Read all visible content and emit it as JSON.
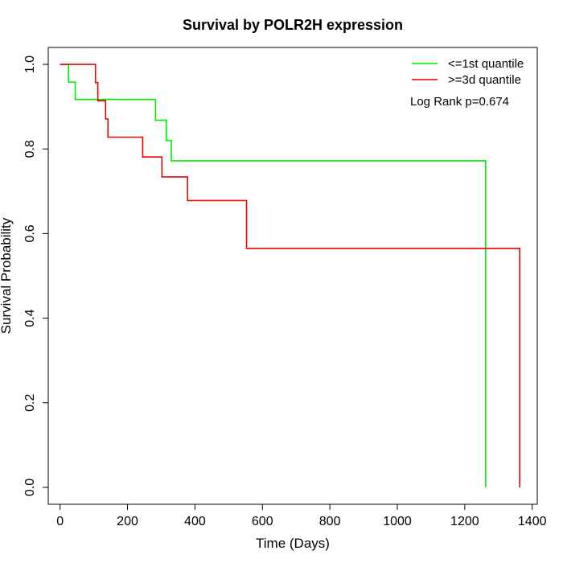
{
  "chart_data": {
    "type": "line",
    "title": "Survival by POLR2H expression",
    "xlabel": "Time (Days)",
    "ylabel": "Survival Probability",
    "xlim": [
      -35,
      1415
    ],
    "ylim": [
      -0.04,
      1.04
    ],
    "xticks": [
      0,
      200,
      400,
      600,
      800,
      1000,
      1200,
      1400
    ],
    "yticks": [
      0.0,
      0.2,
      0.4,
      0.6,
      0.8,
      1.0
    ],
    "ytick_labels": [
      "0.0",
      "0.2",
      "0.4",
      "0.6",
      "0.8",
      "1.0"
    ],
    "grid": false,
    "legend_position": "top-right",
    "annotation": "Log Rank p=0.674",
    "series": [
      {
        "name": "<=1st quantile",
        "color": "#00ee00",
        "step": [
          [
            0,
            1.0
          ],
          [
            25,
            1.0
          ],
          [
            25,
            0.958
          ],
          [
            45,
            0.958
          ],
          [
            45,
            0.917
          ],
          [
            283,
            0.917
          ],
          [
            283,
            0.868
          ],
          [
            315,
            0.868
          ],
          [
            315,
            0.82
          ],
          [
            330,
            0.82
          ],
          [
            330,
            0.772
          ],
          [
            1262,
            0.772
          ],
          [
            1262,
            0.0
          ]
        ]
      },
      {
        "name": ">=3d quantile",
        "color": "#ee0000",
        "step": [
          [
            0,
            1.0
          ],
          [
            105,
            1.0
          ],
          [
            105,
            0.957
          ],
          [
            112,
            0.957
          ],
          [
            112,
            0.914
          ],
          [
            135,
            0.914
          ],
          [
            135,
            0.871
          ],
          [
            142,
            0.871
          ],
          [
            142,
            0.828
          ],
          [
            245,
            0.828
          ],
          [
            245,
            0.781
          ],
          [
            302,
            0.781
          ],
          [
            302,
            0.734
          ],
          [
            378,
            0.734
          ],
          [
            378,
            0.678
          ],
          [
            553,
            0.678
          ],
          [
            553,
            0.565
          ],
          [
            1363,
            0.565
          ],
          [
            1363,
            0.0
          ]
        ]
      }
    ]
  }
}
